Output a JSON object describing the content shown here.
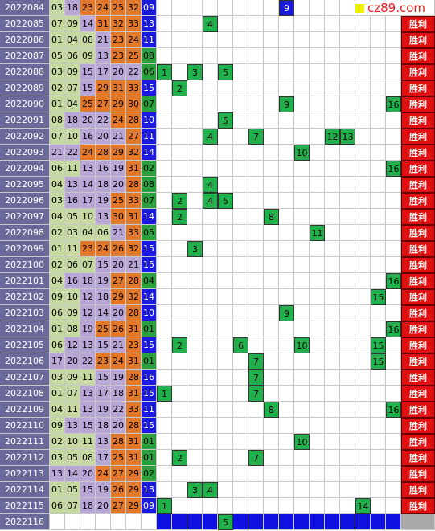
{
  "logo": "cz89.com",
  "rows": [
    {
      "issue": "2022084",
      "reds": [
        "03",
        "18",
        "23",
        "24",
        "25",
        "32"
      ],
      "blue": "09",
      "marks": [
        9
      ]
    },
    {
      "issue": "2022085",
      "reds": [
        "07",
        "09",
        "14",
        "31",
        "32",
        "33"
      ],
      "blue": "13",
      "marks": [
        4
      ],
      "result": "胜利"
    },
    {
      "issue": "2022086",
      "reds": [
        "01",
        "04",
        "08",
        "21",
        "23",
        "24"
      ],
      "blue": "11",
      "marks": [],
      "result": "胜利"
    },
    {
      "issue": "2022087",
      "reds": [
        "05",
        "06",
        "09",
        "13",
        "23",
        "25"
      ],
      "blue": "08",
      "marks": [],
      "result": "胜利"
    },
    {
      "issue": "2022088",
      "reds": [
        "03",
        "09",
        "15",
        "17",
        "20",
        "22"
      ],
      "blue": "06",
      "marks": [
        1,
        3,
        5
      ],
      "result": "胜利"
    },
    {
      "issue": "2022089",
      "reds": [
        "02",
        "07",
        "15",
        "29",
        "31",
        "33"
      ],
      "blue": "15",
      "marks": [
        2
      ],
      "result": "胜利"
    },
    {
      "issue": "2022090",
      "reds": [
        "01",
        "04",
        "25",
        "27",
        "29",
        "30"
      ],
      "blue": "07",
      "marks": [
        9,
        16
      ],
      "result": "胜利"
    },
    {
      "issue": "2022091",
      "reds": [
        "08",
        "18",
        "20",
        "22",
        "24",
        "28"
      ],
      "blue": "10",
      "marks": [
        5
      ],
      "result": "胜利"
    },
    {
      "issue": "2022092",
      "reds": [
        "07",
        "10",
        "16",
        "20",
        "21",
        "27"
      ],
      "blue": "11",
      "marks": [
        4,
        7,
        12,
        13
      ],
      "result": "胜利"
    },
    {
      "issue": "2022093",
      "reds": [
        "21",
        "22",
        "24",
        "28",
        "29",
        "32"
      ],
      "blue": "14",
      "marks": [
        10
      ],
      "result": "胜利"
    },
    {
      "issue": "2022094",
      "reds": [
        "06",
        "11",
        "13",
        "16",
        "19",
        "31"
      ],
      "blue": "02",
      "marks": [
        16
      ],
      "result": "胜利"
    },
    {
      "issue": "2022095",
      "reds": [
        "04",
        "13",
        "14",
        "18",
        "20",
        "28"
      ],
      "blue": "08",
      "marks": [
        4
      ],
      "result": "胜利"
    },
    {
      "issue": "2022096",
      "reds": [
        "03",
        "16",
        "17",
        "19",
        "25",
        "33"
      ],
      "blue": "07",
      "marks": [
        2,
        4,
        5
      ],
      "result": "胜利"
    },
    {
      "issue": "2022097",
      "reds": [
        "04",
        "05",
        "10",
        "13",
        "30",
        "31"
      ],
      "blue": "14",
      "marks": [
        2,
        8
      ],
      "result": "胜利"
    },
    {
      "issue": "2022098",
      "reds": [
        "02",
        "03",
        "04",
        "06",
        "21",
        "33"
      ],
      "blue": "05",
      "marks": [
        11
      ],
      "result": "胜利"
    },
    {
      "issue": "2022099",
      "reds": [
        "01",
        "11",
        "23",
        "24",
        "26",
        "32"
      ],
      "blue": "15",
      "marks": [
        3
      ],
      "result": "胜利"
    },
    {
      "issue": "2022100",
      "reds": [
        "02",
        "06",
        "07",
        "15",
        "20",
        "21"
      ],
      "blue": "15",
      "marks": [],
      "result": "胜利"
    },
    {
      "issue": "2022101",
      "reds": [
        "04",
        "16",
        "18",
        "19",
        "27",
        "28"
      ],
      "blue": "04",
      "marks": [
        16
      ],
      "result": "胜利"
    },
    {
      "issue": "2022102",
      "reds": [
        "09",
        "10",
        "12",
        "18",
        "29",
        "32"
      ],
      "blue": "14",
      "marks": [
        15
      ],
      "result": "胜利"
    },
    {
      "issue": "2022103",
      "reds": [
        "06",
        "09",
        "12",
        "14",
        "20",
        "28"
      ],
      "blue": "10",
      "marks": [
        9
      ],
      "result": "胜利"
    },
    {
      "issue": "2022104",
      "reds": [
        "01",
        "08",
        "19",
        "25",
        "26",
        "31"
      ],
      "blue": "01",
      "marks": [
        16
      ],
      "result": "胜利"
    },
    {
      "issue": "2022105",
      "reds": [
        "06",
        "12",
        "13",
        "15",
        "21",
        "23"
      ],
      "blue": "15",
      "marks": [
        2,
        6,
        10,
        15
      ],
      "result": "胜利"
    },
    {
      "issue": "2022106",
      "reds": [
        "17",
        "20",
        "22",
        "23",
        "24",
        "31"
      ],
      "blue": "01",
      "marks": [
        7,
        15
      ],
      "result": "胜利"
    },
    {
      "issue": "2022107",
      "reds": [
        "03",
        "09",
        "11",
        "15",
        "19",
        "28"
      ],
      "blue": "16",
      "marks": [
        7
      ],
      "result": "胜利"
    },
    {
      "issue": "2022108",
      "reds": [
        "01",
        "07",
        "13",
        "17",
        "18",
        "31"
      ],
      "blue": "15",
      "marks": [
        1,
        7
      ],
      "result": "胜利"
    },
    {
      "issue": "2022109",
      "reds": [
        "04",
        "11",
        "13",
        "19",
        "22",
        "33"
      ],
      "blue": "11",
      "marks": [
        8,
        16
      ],
      "result": "胜利"
    },
    {
      "issue": "2022110",
      "reds": [
        "09",
        "13",
        "15",
        "18",
        "20",
        "28"
      ],
      "blue": "15",
      "marks": [],
      "result": "胜利"
    },
    {
      "issue": "2022111",
      "reds": [
        "02",
        "10",
        "11",
        "13",
        "28",
        "31"
      ],
      "blue": "01",
      "marks": [
        10
      ],
      "result": "胜利"
    },
    {
      "issue": "2022112",
      "reds": [
        "03",
        "05",
        "08",
        "17",
        "25",
        "31"
      ],
      "blue": "01",
      "marks": [
        2,
        7
      ],
      "result": "胜利"
    },
    {
      "issue": "2022113",
      "reds": [
        "13",
        "14",
        "20",
        "24",
        "27",
        "29"
      ],
      "blue": "02",
      "marks": [],
      "result": "胜利"
    },
    {
      "issue": "2022114",
      "reds": [
        "01",
        "05",
        "15",
        "19",
        "26",
        "29"
      ],
      "blue": "13",
      "marks": [
        3,
        4
      ],
      "result": "胜利"
    },
    {
      "issue": "2022115",
      "reds": [
        "06",
        "07",
        "18",
        "20",
        "27",
        "29"
      ],
      "blue": "09",
      "marks": [
        1,
        14
      ],
      "result": "胜利"
    },
    {
      "issue": "2022116",
      "reds": [],
      "marks": [
        5
      ]
    }
  ]
}
